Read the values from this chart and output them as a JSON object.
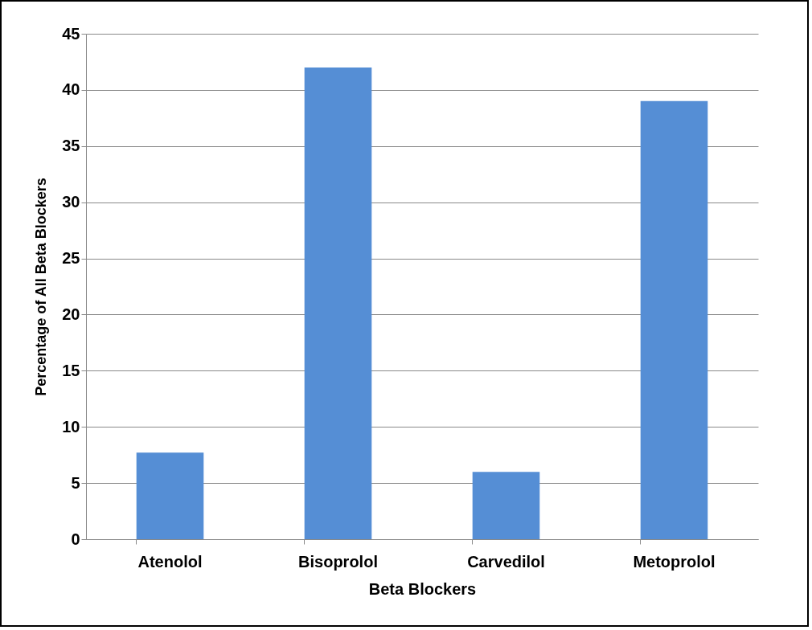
{
  "chart_data": {
    "type": "bar",
    "xlabel": "Beta Blockers",
    "ylabel": "Percentage of All Beta Blockers",
    "categories": [
      "Atenolol",
      "Bisoprolol",
      "Carvedilol",
      "Metoprolol"
    ],
    "values": [
      7.7,
      42,
      6.0,
      39
    ],
    "color": "#558ed5",
    "ylim": [
      0,
      45
    ],
    "yticks": [
      0,
      5,
      10,
      15,
      20,
      25,
      30,
      35,
      40,
      45
    ],
    "grid": "y"
  }
}
